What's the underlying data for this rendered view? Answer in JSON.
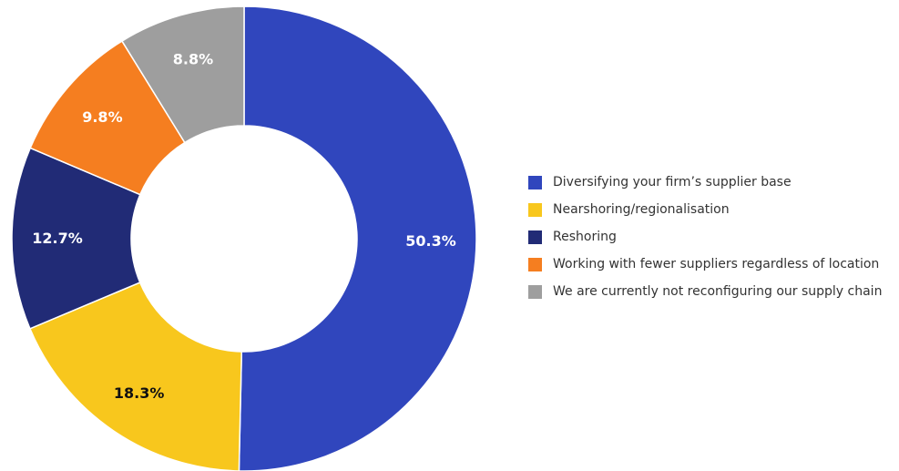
{
  "chart_data": {
    "type": "pie",
    "donut": true,
    "title": "",
    "categories": [
      "Diversifying your firm’s supplier base",
      "Nearshoring/regionalisation",
      "Reshoring",
      "Working with fewer suppliers regardless of location",
      "We are currently not reconfiguring our supply chain"
    ],
    "values": [
      50.3,
      18.3,
      12.7,
      9.8,
      8.8
    ],
    "value_labels": [
      "50.3%",
      "18.3%",
      "12.7%",
      "9.8%",
      "8.8%"
    ],
    "colors": [
      "#3046bd",
      "#f8c71d",
      "#212b76",
      "#f57e20",
      "#9e9e9e"
    ],
    "label_colors": [
      "#ffffff",
      "#111111",
      "#ffffff",
      "#ffffff",
      "#ffffff"
    ],
    "start": "top",
    "direction": "clockwise",
    "legend_position": "right"
  }
}
